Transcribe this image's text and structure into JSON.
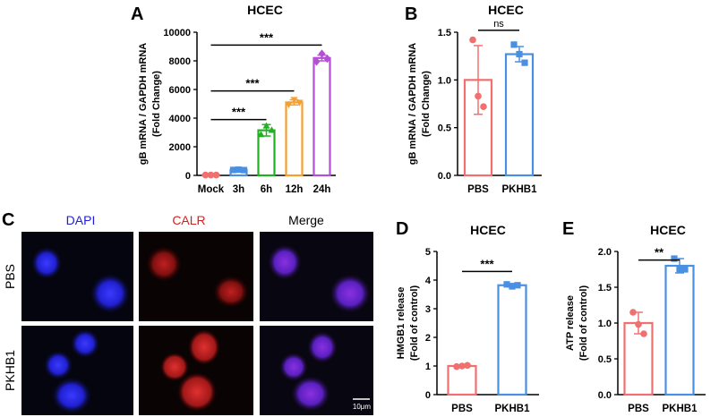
{
  "panels": {
    "A": {
      "letter": "A"
    },
    "B": {
      "letter": "B"
    },
    "C": {
      "letter": "C"
    },
    "D": {
      "letter": "D"
    },
    "E": {
      "letter": "E"
    }
  },
  "microscopy": {
    "columns": [
      "DAPI",
      "CALR",
      "Merge"
    ],
    "column_colors": [
      "#1f1fd6",
      "#d62020",
      "#000000"
    ],
    "rows": [
      "PBS",
      "PKHB1"
    ],
    "scale_bar": "10μm"
  },
  "chart_data": [
    {
      "id": "A",
      "type": "bar",
      "title": "HCEC",
      "ylabel": [
        "gB mRNA / GAPDH mRNA",
        "(Fold Change)"
      ],
      "ylim": [
        0,
        10000
      ],
      "yticks": [
        "0",
        "2000",
        "4000",
        "6000",
        "8000",
        "10000"
      ],
      "ytick_values": [
        0,
        2000,
        4000,
        6000,
        8000,
        10000
      ],
      "categories": [
        "Mock",
        "3h",
        "6h",
        "12h",
        "24h"
      ],
      "values": [
        30,
        380,
        3150,
        5100,
        8200
      ],
      "errors": [
        30,
        40,
        400,
        180,
        200
      ],
      "points": [
        [
          30,
          30,
          30
        ],
        [
          380,
          400,
          370
        ],
        [
          2850,
          3450,
          3150
        ],
        [
          4950,
          5300,
          5100
        ],
        [
          7950,
          8500,
          8150
        ]
      ],
      "colors": [
        "#f07070",
        "#4a90e2",
        "#22b022",
        "#f5a030",
        "#b44fd6"
      ],
      "markers": [
        "circle",
        "square",
        "triangle",
        "triangle-down",
        "diamond"
      ],
      "comparisons": [
        {
          "from": 0,
          "to": 4,
          "y": 9100,
          "label": "***"
        },
        {
          "from": 0,
          "to": 3,
          "y": 5900,
          "label": "***"
        },
        {
          "from": 0,
          "to": 2,
          "y": 3900,
          "label": "***"
        }
      ],
      "grid": false
    },
    {
      "id": "B",
      "type": "bar",
      "title": "HCEC",
      "ylabel": [
        "gB mRNA / GAPDH mRNA",
        "(Fold Change)"
      ],
      "ylim": [
        0,
        1.5
      ],
      "yticks": [
        "0.0",
        "0.5",
        "1.0",
        "1.5"
      ],
      "ytick_values": [
        0,
        0.5,
        1.0,
        1.5
      ],
      "categories": [
        "PBS",
        "PKHB1"
      ],
      "values": [
        1.0,
        1.27
      ],
      "errors": [
        0.36,
        0.08
      ],
      "points": [
        [
          1.42,
          0.83,
          0.72
        ],
        [
          1.37,
          1.27,
          1.18
        ]
      ],
      "colors": [
        "#f07070",
        "#4a90e2"
      ],
      "markers": [
        "circle",
        "square"
      ],
      "comparisons": [
        {
          "from": 0,
          "to": 1,
          "y": 1.52,
          "label": "ns"
        }
      ],
      "grid": false
    },
    {
      "id": "D",
      "type": "bar",
      "title": "HCEC",
      "ylabel": [
        "HMGB1 release",
        "(Fold of control)"
      ],
      "ylim": [
        0,
        5
      ],
      "yticks": [
        "0",
        "1",
        "2",
        "3",
        "4",
        "5"
      ],
      "ytick_values": [
        0,
        1,
        2,
        3,
        4,
        5
      ],
      "categories": [
        "PBS",
        "PKHB1"
      ],
      "values": [
        1.0,
        3.82
      ],
      "errors": [
        0.03,
        0.06
      ],
      "points": [
        [
          0.98,
          1.0,
          1.02
        ],
        [
          3.85,
          3.78,
          3.82
        ]
      ],
      "colors": [
        "#f07070",
        "#4a90e2"
      ],
      "markers": [
        "circle",
        "square"
      ],
      "comparisons": [
        {
          "from": 0,
          "to": 1,
          "y": 4.3,
          "label": "***"
        }
      ],
      "grid": false
    },
    {
      "id": "E",
      "type": "bar",
      "title": "HCEC",
      "ylabel": [
        "ATP release",
        "(Fold of control)"
      ],
      "ylim": [
        0,
        2.0
      ],
      "yticks": [
        "0.0",
        "0.5",
        "1.0",
        "1.5",
        "2.0"
      ],
      "ytick_values": [
        0,
        0.5,
        1.0,
        1.5,
        2.0
      ],
      "categories": [
        "PBS",
        "PKHB1"
      ],
      "values": [
        1.0,
        1.8
      ],
      "errors": [
        0.15,
        0.1
      ],
      "points": [
        [
          1.15,
          0.98,
          0.85
        ],
        [
          1.9,
          1.75,
          1.75
        ]
      ],
      "colors": [
        "#f07070",
        "#4a90e2"
      ],
      "markers": [
        "circle",
        "square"
      ],
      "comparisons": [
        {
          "from": 0,
          "to": 1,
          "y": 1.88,
          "label": "**"
        }
      ],
      "grid": false
    }
  ]
}
